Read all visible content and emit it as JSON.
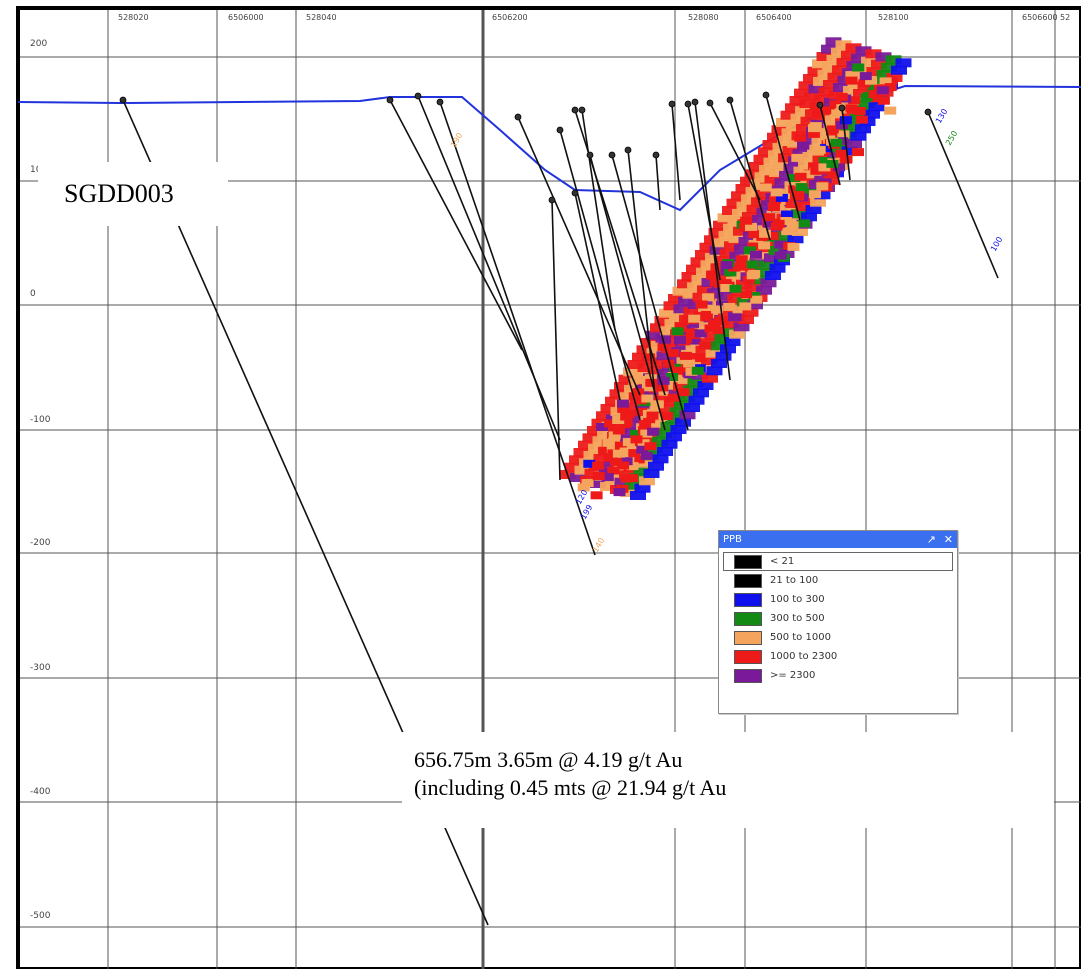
{
  "header": {
    "easting_labels": [
      "528020",
      "6506000",
      "528040",
      "6506200",
      "528080",
      "6506400",
      "528100",
      "6506600",
      "52"
    ]
  },
  "rl_axis": {
    "labels": [
      "200",
      "10",
      "0",
      "-100",
      "-200",
      "-300",
      "-400",
      "-500"
    ]
  },
  "hole_id": "SGDD003",
  "intercept": {
    "line1": "656.75m 3.65m @ 4.19 g/t Au",
    "line2": "(including 0.45 mts @ 21.94 g/t Au"
  },
  "legend": {
    "title": "PPB",
    "pin_icon": "pin-icon",
    "close_icon": "close-icon",
    "items": [
      {
        "label": "< 21",
        "color": "#000000"
      },
      {
        "label": "21 to 100",
        "color": "#000000"
      },
      {
        "label": "100 to 300",
        "color": "#1010ee"
      },
      {
        "label": "300 to 500",
        "color": "#138a13"
      },
      {
        "label": "500 to 1000",
        "color": "#f4a45c"
      },
      {
        "label": "1000 to 2300",
        "color": "#ee1a1a"
      },
      {
        "label": ">= 2300",
        "color": "#7a1a9a"
      }
    ]
  },
  "sample_labels": [
    "190",
    "130",
    "250",
    "100",
    "120",
    "199",
    "140"
  ],
  "colors": {
    "topography": "#2233dd",
    "grid": "#555555",
    "drillhole": "#111111"
  }
}
